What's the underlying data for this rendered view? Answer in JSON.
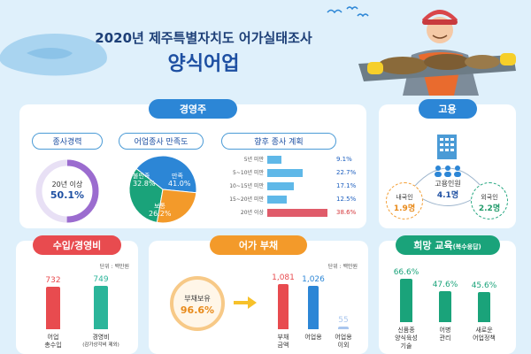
{
  "header": {
    "title": "2020년 제주특별자치도 어가실태조사",
    "subtitle": "양식어업"
  },
  "management": {
    "title": "경영주",
    "experience": {
      "label": "종사경력",
      "line1": "20년 이상",
      "value": "50.1%",
      "fraction": 0.501
    },
    "satisfaction": {
      "label": "어업종사 만족도",
      "slices": [
        {
          "name": "불만족",
          "value": "32.8%",
          "pct": 32.8,
          "color": "#1aa37a"
        },
        {
          "name": "만족",
          "value": "41.0%",
          "pct": 41.0,
          "color": "#2c86d6"
        },
        {
          "name": "보통",
          "value": "26.2%",
          "pct": 26.2,
          "color": "#f39a2a"
        }
      ]
    },
    "plan": {
      "label": "향후 종사 계획",
      "rows": [
        {
          "label": "5년 미만",
          "value": "9.1%",
          "pct": 9.1
        },
        {
          "label": "5~10년 미만",
          "value": "22.7%",
          "pct": 22.7
        },
        {
          "label": "10~15년 미만",
          "value": "17.1%",
          "pct": 17.1
        },
        {
          "label": "15~20년 미만",
          "value": "12.5%",
          "pct": 12.5
        },
        {
          "label": "20년 이상",
          "value": "38.6%",
          "pct": 38.6
        }
      ]
    }
  },
  "employment": {
    "title": "고용",
    "total_label": "고용인원",
    "total_value": "4.1명",
    "domestic_label": "내국인",
    "domestic_value": "1.9명",
    "foreign_label": "외국인",
    "foreign_value": "2.2명"
  },
  "income": {
    "title": "수입/경영비",
    "unit": "단위 : 백만원",
    "bars": [
      {
        "value": "732",
        "amount": 732,
        "label1": "어업",
        "label2": "총수입",
        "color": "#e84b4f"
      },
      {
        "value": "749",
        "amount": 749,
        "label1": "경영비",
        "label2": "(감가상각비 제외)",
        "color": "#2bb59a"
      }
    ]
  },
  "debt": {
    "title": "어가 부채",
    "unit": "단위 : 백만원",
    "holding_label": "부채보유",
    "holding_value": "96.6%",
    "bars": [
      {
        "value": "1,081",
        "amount": 1081,
        "label1": "부채",
        "label2": "금액",
        "color": "#e84b4f"
      },
      {
        "value": "1,026",
        "amount": 1026,
        "label1": "어업용",
        "label2": "",
        "color": "#2c86d6"
      },
      {
        "value": "55",
        "amount": 55,
        "label1": "어업용",
        "label2": "이외",
        "color": "#a9c6ee"
      }
    ]
  },
  "education": {
    "title": "희망 교육",
    "title_note": "(복수응답)",
    "bars": [
      {
        "value": "66.6%",
        "pct": 66.6,
        "label1": "신품종",
        "label2": "양식육성",
        "label3": "기술"
      },
      {
        "value": "47.6%",
        "pct": 47.6,
        "label1": "어병",
        "label2": "관리",
        "label3": ""
      },
      {
        "value": "45.6%",
        "pct": 45.6,
        "label1": "새로운",
        "label2": "어업정책",
        "label3": ""
      }
    ]
  }
}
